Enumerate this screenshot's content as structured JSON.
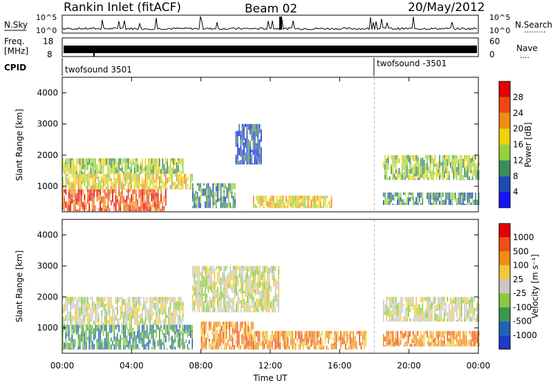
{
  "header": {
    "station": "Rankin Inlet (fitACF)",
    "beam": "Beam 02",
    "date": "20/May/2012"
  },
  "noise_panel": {
    "left_label": "N.Sky",
    "right_label": "N.Search",
    "right_dots": "·········",
    "left_ticks": [
      "10^5",
      "10^0"
    ],
    "right_ticks": [
      "10^5",
      "10^0"
    ]
  },
  "freq_panel": {
    "left_label_line1": "Freq.",
    "left_label_line2": "[MHz]",
    "right_label": "Nave",
    "right_dots": "····",
    "left_ticks": [
      "18",
      "8"
    ],
    "right_ticks": [
      "60",
      "0"
    ]
  },
  "cpid_panel": {
    "label": "CPID",
    "entries": [
      {
        "name": "twofsound 3501",
        "start_hour": 0
      },
      {
        "name": "twofsound -3501",
        "start_hour": 18
      }
    ]
  },
  "time_axis": {
    "title": "Time UT",
    "ticks": [
      "00:00",
      "04:00",
      "08:00",
      "12:00",
      "16:00",
      "20:00",
      "00:00"
    ]
  },
  "chart_data": [
    {
      "type": "heatmap",
      "name": "Power",
      "ylabel": "Slant Range [km]",
      "xlim": [
        0,
        24
      ],
      "ylim": [
        180,
        4500
      ],
      "y_ticks": [
        "1000",
        "2000",
        "3000",
        "4000"
      ],
      "colorbar_label": "Power [dB]",
      "colorbar_ticks": [
        "4",
        "8",
        "12",
        "16",
        "20",
        "24",
        "28"
      ],
      "colors": [
        "#1414ff",
        "#1e4ab4",
        "#3c8c5a",
        "#96d23c",
        "#f0d20a",
        "#f08c14",
        "#f04614",
        "#e60000"
      ],
      "bands": [
        {
          "t0": 0.0,
          "t1": 6.0,
          "r0": 200,
          "r1": 900,
          "level": 6
        },
        {
          "t0": 0.0,
          "t1": 7.5,
          "r0": 900,
          "r1": 1400,
          "level": 4
        },
        {
          "t0": 0.0,
          "t1": 7.0,
          "r0": 1400,
          "r1": 1900,
          "level": 3
        },
        {
          "t0": 7.5,
          "t1": 10.0,
          "r0": 300,
          "r1": 1100,
          "level": 2
        },
        {
          "t0": 10.0,
          "t1": 11.5,
          "r0": 1700,
          "r1": 3000,
          "level": 1
        },
        {
          "t0": 11.0,
          "t1": 15.5,
          "r0": 300,
          "r1": 700,
          "level": 4
        },
        {
          "t0": 18.5,
          "t1": 24.0,
          "r0": 1200,
          "r1": 2000,
          "level": 3
        },
        {
          "t0": 18.5,
          "t1": 24.0,
          "r0": 400,
          "r1": 800,
          "level": 2
        }
      ]
    },
    {
      "type": "heatmap",
      "name": "Velocity",
      "ylabel": "Slant Range [km]",
      "xlim": [
        0,
        24
      ],
      "ylim": [
        180,
        4500
      ],
      "y_ticks": [
        "1000",
        "2000",
        "3000",
        "4000"
      ],
      "colorbar_label": "Velocity [m s⁻¹]",
      "colorbar_ticks": [
        "1000",
        "500",
        "100",
        "25",
        "-25",
        "-100",
        "-500",
        "-1000"
      ],
      "colors": [
        "#1e3cc8",
        "#1e64b4",
        "#3c9650",
        "#8cc83c",
        "#c8c8c8",
        "#f0c83c",
        "#f08c14",
        "#f05014",
        "#e60000"
      ],
      "bands": [
        {
          "t0": 0.0,
          "t1": 7.5,
          "r0": 300,
          "r1": 1100,
          "level": 2
        },
        {
          "t0": 0.0,
          "t1": 7.0,
          "r0": 1100,
          "r1": 2000,
          "level": 4
        },
        {
          "t0": 7.5,
          "t1": 12.5,
          "r0": 1500,
          "r1": 3000,
          "level": 4
        },
        {
          "t0": 8.0,
          "t1": 11.0,
          "r0": 300,
          "r1": 1200,
          "level": 6
        },
        {
          "t0": 11.0,
          "t1": 17.5,
          "r0": 300,
          "r1": 900,
          "level": 6
        },
        {
          "t0": 18.5,
          "t1": 24.0,
          "r0": 1200,
          "r1": 2000,
          "level": 4
        },
        {
          "t0": 18.5,
          "t1": 24.0,
          "r0": 400,
          "r1": 900,
          "level": 6
        }
      ]
    }
  ]
}
